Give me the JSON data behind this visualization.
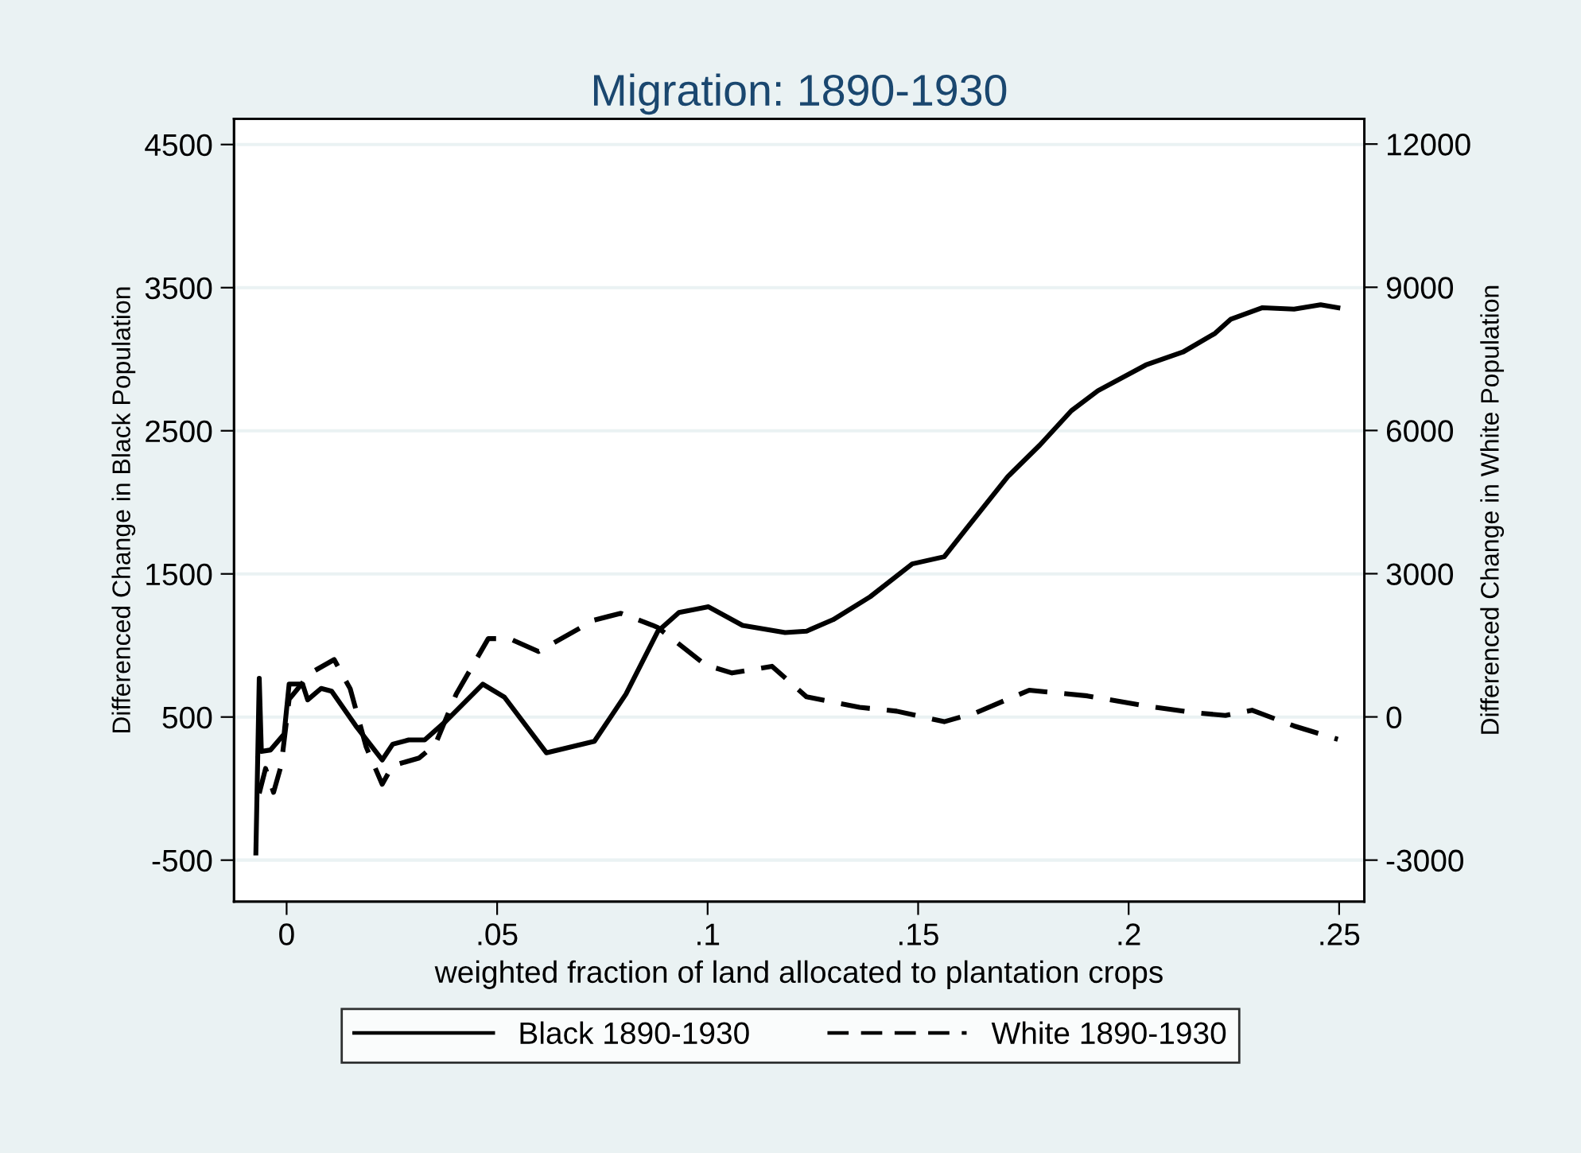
{
  "chart_data": {
    "type": "line",
    "title": "Migration: 1890-1930",
    "xlabel": "weighted fraction of land allocated to plantation crops",
    "ylabel": "Differenced Change in Black Population",
    "y2label": "Differenced Change in White Population",
    "xlim": [
      -0.0125,
      0.256
    ],
    "xticks": [
      0,
      {
        "value": 0.05,
        "label": ".05"
      },
      {
        "value": 0.1,
        "label": ".1"
      },
      {
        "value": 0.15,
        "label": ".15"
      },
      {
        "value": 0.2,
        "label": ".2"
      },
      {
        "value": 0.25,
        "label": ".25"
      }
    ],
    "ylim": [
      -790,
      4680
    ],
    "yticks": [
      -500,
      500,
      1500,
      2500,
      3500,
      4500
    ],
    "y2lim": [
      -3870,
      12530
    ],
    "y2ticks": [
      -3000,
      0,
      3000,
      6000,
      9000,
      12000
    ],
    "grid": "y",
    "legend": "bottom",
    "series": [
      {
        "name": "Black 1890-1930",
        "color": "#000000",
        "line_style": "solid",
        "x": [
          -0.0073,
          -0.0065,
          -0.006,
          -0.0038,
          -0.0006,
          0.0006,
          0.0038,
          0.005,
          0.0082,
          0.0107,
          0.0164,
          0.0227,
          0.0252,
          0.029,
          0.0328,
          0.0378,
          0.0466,
          0.0517,
          0.0617,
          0.0731,
          0.0806,
          0.0882,
          0.0932,
          0.1002,
          0.1083,
          0.1184,
          0.1235,
          0.1298,
          0.1386,
          0.1486,
          0.1562,
          0.1613,
          0.1713,
          0.1789,
          0.1864,
          0.1927,
          0.2041,
          0.2129,
          0.2205,
          0.2243,
          0.2318,
          0.2393,
          0.2456,
          0.2497
        ],
        "values": [
          -450,
          770,
          260,
          270,
          380,
          730,
          730,
          620,
          700,
          680,
          440,
          200,
          310,
          340,
          340,
          470,
          730,
          640,
          250,
          330,
          660,
          1100,
          1230,
          1270,
          1140,
          1090,
          1100,
          1180,
          1340,
          1570,
          1620,
          1810,
          2180,
          2400,
          2640,
          2780,
          2960,
          3050,
          3180,
          3280,
          3360,
          3350,
          3380,
          3360
        ]
      },
      {
        "name": "White 1890-1930",
        "color": "#000000",
        "line_style": "dashed",
        "axis": "y2",
        "x": [
          -0.0065,
          -0.005,
          -0.0031,
          -0.0013,
          0.0006,
          0.0057,
          0.0113,
          0.0151,
          0.0189,
          0.0227,
          0.0252,
          0.0315,
          0.0353,
          0.0403,
          0.0479,
          0.0529,
          0.0598,
          0.0731,
          0.0794,
          0.0869,
          0.0882,
          0.0995,
          0.1058,
          0.1153,
          0.1235,
          0.1361,
          0.1449,
          0.1562,
          0.1638,
          0.1764,
          0.1902,
          0.2041,
          0.2154,
          0.223,
          0.2293,
          0.2393,
          0.2497
        ],
        "values": [
          -1600,
          -1080,
          -1580,
          -1020,
          370,
          920,
          1200,
          590,
          -630,
          -1410,
          -1020,
          -860,
          -580,
          480,
          1640,
          1640,
          1370,
          2030,
          2170,
          1920,
          1870,
          1090,
          920,
          1060,
          420,
          200,
          120,
          -100,
          90,
          560,
          440,
          230,
          90,
          30,
          140,
          -190,
          -470
        ]
      }
    ]
  }
}
